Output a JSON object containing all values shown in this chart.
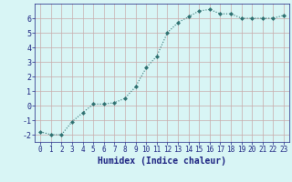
{
  "x": [
    0,
    1,
    2,
    3,
    4,
    5,
    6,
    7,
    8,
    9,
    10,
    11,
    12,
    13,
    14,
    15,
    16,
    17,
    18,
    19,
    20,
    21,
    22,
    23
  ],
  "y": [
    -1.8,
    -2.0,
    -2.0,
    -1.1,
    -0.5,
    0.1,
    0.1,
    0.2,
    0.5,
    1.3,
    2.6,
    3.4,
    5.0,
    5.7,
    6.1,
    6.5,
    6.6,
    6.3,
    6.3,
    6.0,
    6.0,
    6.0,
    6.0,
    6.2
  ],
  "xlabel": "Humidex (Indice chaleur)",
  "xlim": [
    -0.5,
    23.5
  ],
  "ylim": [
    -2.5,
    7.0
  ],
  "yticks": [
    -2,
    -1,
    0,
    1,
    2,
    3,
    4,
    5,
    6
  ],
  "xticks": [
    0,
    1,
    2,
    3,
    4,
    5,
    6,
    7,
    8,
    9,
    10,
    11,
    12,
    13,
    14,
    15,
    16,
    17,
    18,
    19,
    20,
    21,
    22,
    23
  ],
  "line_color": "#2d7070",
  "marker": "D",
  "marker_size": 2.0,
  "bg_color": "#d8f5f5",
  "grid_color": "#c8aaaa",
  "xlabel_color": "#1a2080",
  "tick_color": "#1a2080",
  "font_family": "monospace",
  "xlabel_fontsize": 7.0,
  "tick_fontsize": 5.5,
  "linewidth": 0.8
}
